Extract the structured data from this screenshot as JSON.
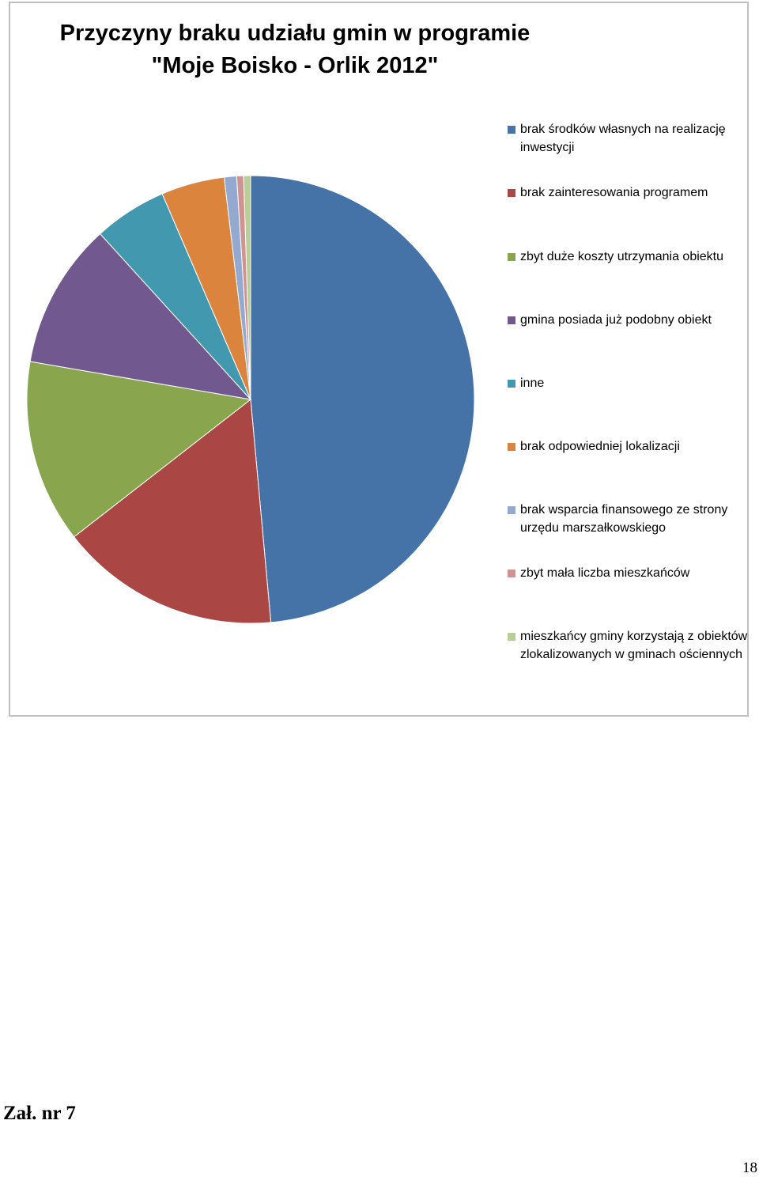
{
  "chart_data": {
    "type": "pie",
    "title": "Przyczyny braku udziału gmin w programie \"Moje Boisko - Orlik 2012\"",
    "legend_position": "right",
    "slices": [
      {
        "label": "brak środków własnych na realizację inwestycji",
        "value": 48.8,
        "color": "#4572A7"
      },
      {
        "label": "brak zainteresowania programem",
        "value": 16.0,
        "color": "#AA4643"
      },
      {
        "label": "zbyt duże koszty utrzymania obiektu",
        "value": 13.3,
        "color": "#89A54E"
      },
      {
        "label": "gmina posiada już podobny obiekt",
        "value": 10.6,
        "color": "#71588F"
      },
      {
        "label": "inne",
        "value": 5.3,
        "color": "#4198AF"
      },
      {
        "label": "brak odpowiedniej lokalizacji",
        "value": 4.6,
        "color": "#DB843D"
      },
      {
        "label": "brak wsparcia finansowego ze strony urzędu marszałkowskiego",
        "value": 0.9,
        "color": "#93A9CF"
      },
      {
        "label": "zbyt mała liczba mieszkańców",
        "value": 0.5,
        "color": "#D19392"
      },
      {
        "label": "mieszkańcy gminy korzystają z obiektów zlokalizowanych w gminach ościennych",
        "value": 0.5,
        "color": "#B9CD96"
      }
    ]
  },
  "page": {
    "attachment_label": "Zał. nr 7",
    "page_number": "18"
  }
}
